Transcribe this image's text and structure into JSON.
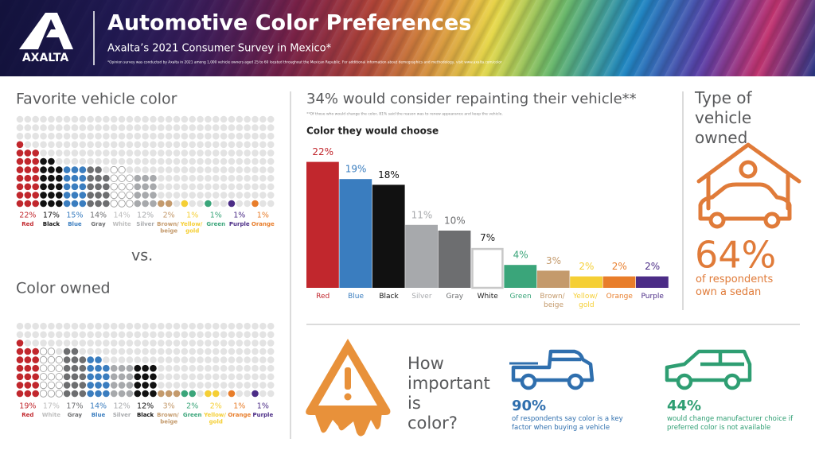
{
  "header": {
    "logo": "AXALTA",
    "title": "Automotive Color Preferences",
    "subtitle": "Axalta’s 2021 Consumer Survey in Mexico*",
    "footnote": "*Opinion survey was conducted by Axalta in 2021 among 1,000 vehicle owners aged 25 to 60 located throughout the Mexican Republic. For additional information about demographics and methodology, visit www.axalta.com/color"
  },
  "vs": "vs.",
  "repaint": {
    "heading": "34% would consider repainting their vehicle**",
    "footnote": "**Of those who would change the color, 81% said the reason was to renew appearance and keep the vehicle."
  },
  "vehicle_type": {
    "heading": "Type of vehicle owned",
    "stat": "64%",
    "text": "of respondents own a sedan"
  },
  "importance": {
    "heading": "How important is color?",
    "stats": [
      {
        "value": "90%",
        "text": "of respondents say color is a key factor when buying a vehicle"
      },
      {
        "value": "44%",
        "text": "would change manufacturer choice if preferred color is not available"
      }
    ]
  },
  "chart_data": [
    {
      "type": "waffle",
      "title": "Favorite vehicle color",
      "categories": [
        "Red",
        "Black",
        "Blue",
        "Gray",
        "White",
        "Silver",
        "Brown/ beige",
        "Yellow/ gold",
        "Green",
        "Purple",
        "Orange"
      ],
      "values": [
        22,
        17,
        15,
        14,
        14,
        12,
        2,
        1,
        1,
        1,
        1
      ],
      "value_labels": [
        "22%",
        "17%",
        "15%",
        "14%",
        "14%",
        "12%",
        "2%",
        "1%",
        "1%",
        "1%",
        "1%"
      ],
      "colors": [
        "#c1272d",
        "#111111",
        "#3a7dbf",
        "#6d6e70",
        "#ffffff",
        "#a7a9ac",
        "#c49a6c",
        "#f5cf35",
        "#3aa57a",
        "#4b2c86",
        "#e87d2a"
      ]
    },
    {
      "type": "waffle",
      "title": "Color owned",
      "categories": [
        "Red",
        "White",
        "Gray",
        "Blue",
        "Silver",
        "Black",
        "Brown/ beige",
        "Green",
        "Yellow/ gold",
        "Orange",
        "Purple"
      ],
      "values": [
        19,
        17,
        17,
        14,
        12,
        12,
        3,
        2,
        2,
        1,
        1
      ],
      "value_labels": [
        "19%",
        "17%",
        "17%",
        "14%",
        "12%",
        "12%",
        "3%",
        "2%",
        "2%",
        "1%",
        "1%"
      ],
      "colors": [
        "#c1272d",
        "#ffffff",
        "#6d6e70",
        "#3a7dbf",
        "#a7a9ac",
        "#111111",
        "#c49a6c",
        "#3aa57a",
        "#f5cf35",
        "#e87d2a",
        "#4b2c86"
      ]
    },
    {
      "type": "bar",
      "title": "Color they would choose",
      "categories": [
        "Red",
        "Blue",
        "Black",
        "Silver",
        "Gray",
        "White",
        "Green",
        "Brown/ beige",
        "Yellow/ gold",
        "Orange",
        "Purple"
      ],
      "values": [
        22,
        19,
        18,
        11,
        10,
        7,
        4,
        3,
        2,
        2,
        2
      ],
      "value_labels": [
        "22%",
        "19%",
        "18%",
        "11%",
        "10%",
        "7%",
        "4%",
        "3%",
        "2%",
        "2%",
        "2%"
      ],
      "colors": [
        "#c1272d",
        "#3a7dbf",
        "#111111",
        "#a7a9ac",
        "#6d6e70",
        "#ffffff",
        "#3aa57a",
        "#c49a6c",
        "#f5cf35",
        "#e87d2a",
        "#4b2c86"
      ]
    }
  ]
}
